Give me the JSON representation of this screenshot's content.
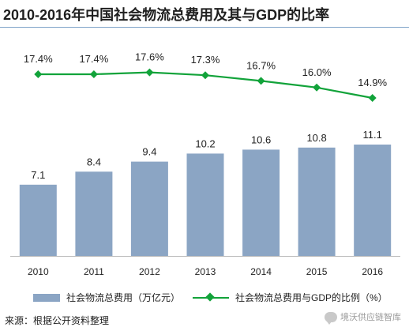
{
  "title": "2010-2016年中国社会物流总费用及其与GDP的比率",
  "source": "来源：根据公开资料整理",
  "watermark": "境沃供应链智库",
  "colors": {
    "bar": "#8ba5c4",
    "line": "#12a33a",
    "title_rule": "#7fa3c8",
    "axis": "#bdbdbd"
  },
  "chart_data": {
    "type": "bar+line",
    "categories": [
      "2010",
      "2011",
      "2012",
      "2013",
      "2014",
      "2015",
      "2016"
    ],
    "series": [
      {
        "name": "社会物流总费用（万亿元）",
        "type": "bar",
        "values": [
          7.1,
          8.4,
          9.4,
          10.2,
          10.6,
          10.8,
          11.1
        ],
        "labels": [
          "7.1",
          "8.4",
          "9.4",
          "10.2",
          "10.6",
          "10.8",
          "11.1"
        ]
      },
      {
        "name": "社会物流总费用与GDP的比例（%）",
        "type": "line",
        "marker": "diamond",
        "values": [
          17.4,
          17.4,
          17.6,
          17.3,
          16.7,
          16.0,
          14.9
        ],
        "labels": [
          "17.4%",
          "17.4%",
          "17.6%",
          "17.3%",
          "16.7%",
          "16.0%",
          "14.9%"
        ]
      }
    ],
    "grid": false,
    "legend_position": "bottom"
  }
}
